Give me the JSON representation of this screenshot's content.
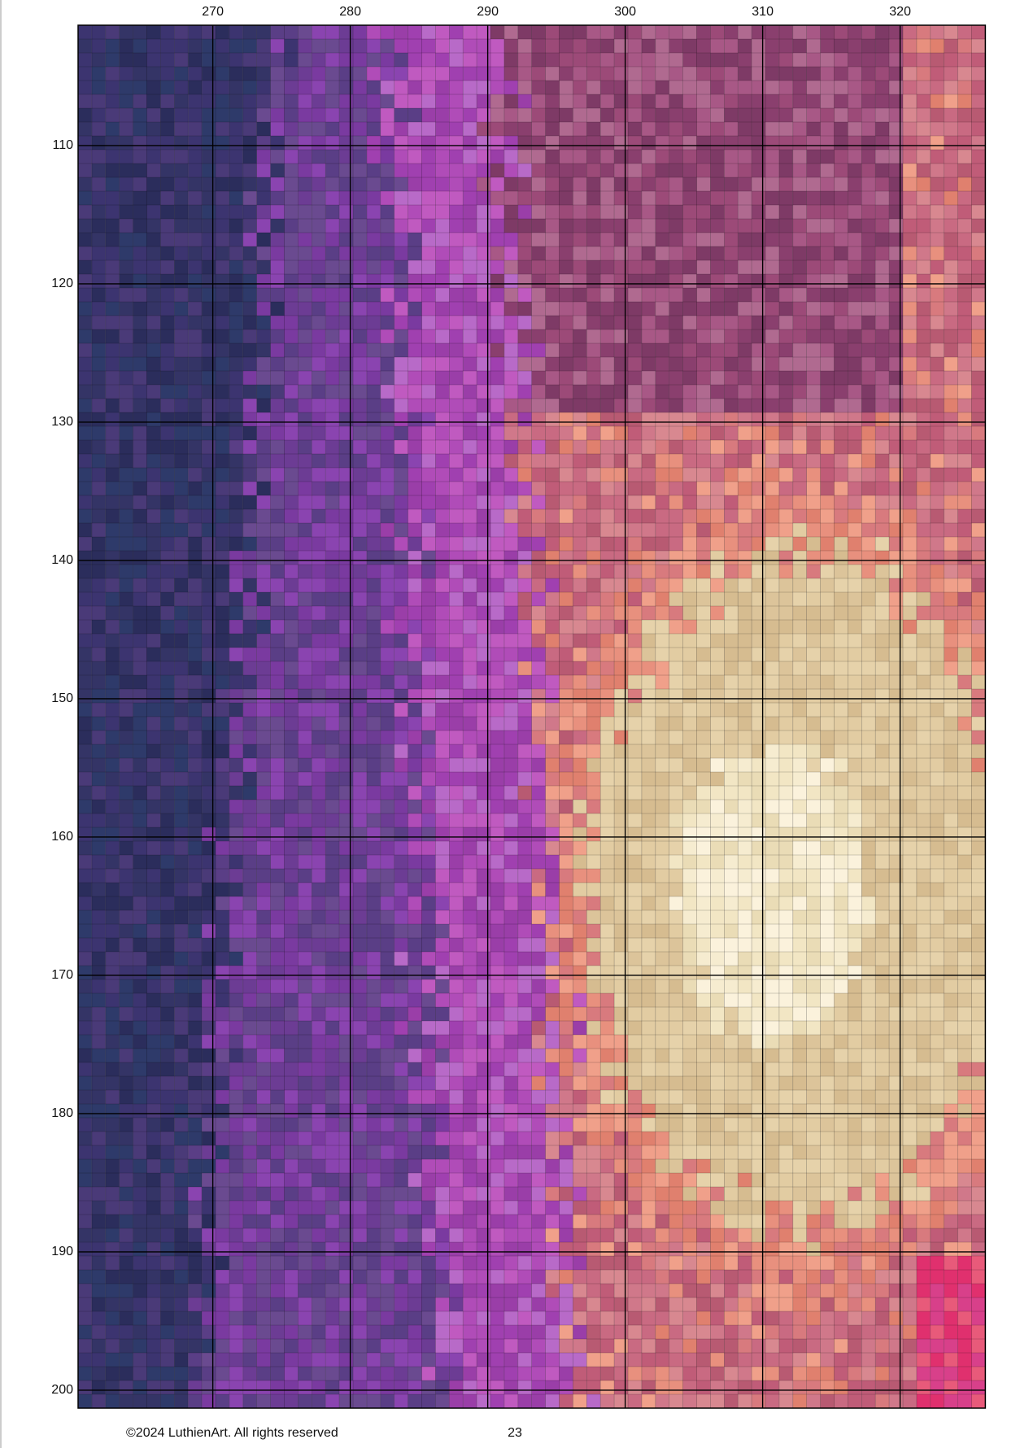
{
  "column_labels": [
    270,
    280,
    290,
    300,
    310,
    320
  ],
  "row_labels": [
    110,
    120,
    130,
    140,
    150,
    160,
    170,
    180,
    190,
    200
  ],
  "footer": {
    "copyright": "©2024 LuthienArt. All rights reserved",
    "page_number": 23
  }
}
